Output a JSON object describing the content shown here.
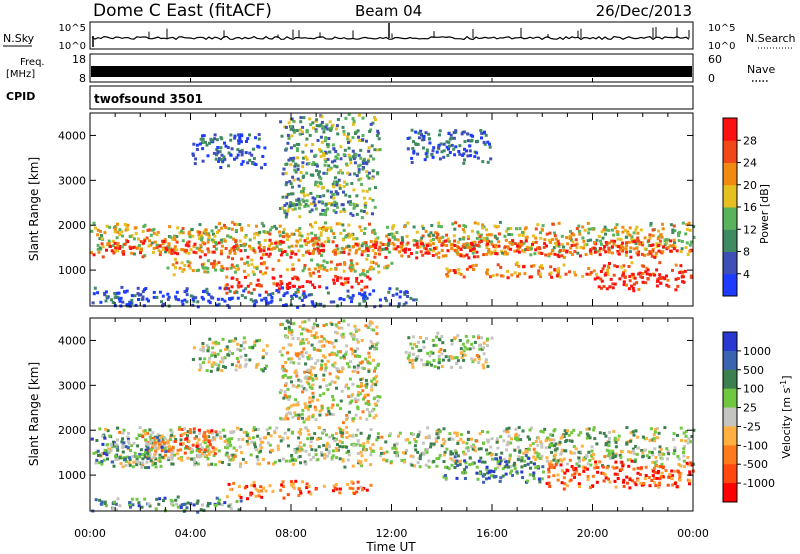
{
  "header": {
    "station": "Dome C East (fitACF)",
    "beam": "Beam 04",
    "date": "26/Dec/2013"
  },
  "nsky_panel": {
    "left_label": "N.Sky",
    "left_ticks": [
      "10^5",
      "10^0"
    ],
    "right_label": "N.Search",
    "right_ticks": [
      "10^5",
      "10^0"
    ]
  },
  "freq_panel": {
    "left_label_line1": "Freq.",
    "left_label_line2": "[MHz]",
    "left_ticks": [
      "18",
      "8"
    ],
    "right_label": "Nave",
    "right_ticks": [
      "60",
      "0"
    ]
  },
  "cpid_panel": {
    "label": "CPID",
    "program": "twofsound 3501"
  },
  "chart_data": [
    {
      "type": "heatmap",
      "title": "",
      "xlabel": "",
      "ylabel": "Slant Range [km]",
      "ylim": [
        200,
        4500
      ],
      "yticks": [
        1000,
        2000,
        3000,
        4000
      ],
      "colorbar_label": "Power [dB]",
      "colorbar_levels": [
        0,
        4,
        8,
        12,
        16,
        20,
        24,
        28,
        32
      ],
      "colorbar_ticks": [
        4,
        8,
        12,
        16,
        20,
        24,
        28
      ],
      "colorbar_colors": [
        "#1e3cff",
        "#3f4fb8",
        "#3f8a60",
        "#58b35a",
        "#e6c020",
        "#f08a10",
        "#f04818",
        "#ff1010"
      ],
      "bands": [
        {
          "x_start": 0,
          "x_end": 24,
          "y_min": 1350,
          "y_max": 2100,
          "level": 0.55
        },
        {
          "x_start": 0,
          "x_end": 24,
          "y_min": 1300,
          "y_max": 1700,
          "level": 0.85
        },
        {
          "x_start": 3,
          "x_end": 12,
          "y_min": 900,
          "y_max": 1300,
          "level": 0.6
        },
        {
          "x_start": 5.3,
          "x_end": 9.3,
          "y_min": 500,
          "y_max": 900,
          "level": 0.9
        },
        {
          "x_start": 9.5,
          "x_end": 11.2,
          "y_min": 550,
          "y_max": 900,
          "level": 0.9
        },
        {
          "x_start": 14,
          "x_end": 24,
          "y_min": 850,
          "y_max": 1200,
          "level": 0.75
        },
        {
          "x_start": 20,
          "x_end": 24,
          "y_min": 550,
          "y_max": 1000,
          "level": 0.95
        },
        {
          "x_start": 0,
          "x_end": 13,
          "y_min": 200,
          "y_max": 650,
          "level": 0.15
        },
        {
          "x_start": 4,
          "x_end": 7,
          "y_min": 3300,
          "y_max": 4100,
          "level": 0.15
        },
        {
          "x_start": 7.5,
          "x_end": 11.5,
          "y_min": 2200,
          "y_max": 4500,
          "level": 0.35
        },
        {
          "x_start": 12.5,
          "x_end": 16,
          "y_min": 3400,
          "y_max": 4200,
          "level": 0.15
        }
      ]
    },
    {
      "type": "heatmap",
      "title": "",
      "xlabel": "Time UT",
      "ylabel": "Slant Range [km]",
      "ylim": [
        200,
        4500
      ],
      "yticks": [
        1000,
        2000,
        3000,
        4000
      ],
      "xlim": [
        0,
        24
      ],
      "xticks": [
        "00:00",
        "04:00",
        "08:00",
        "12:00",
        "16:00",
        "20:00",
        "00:00"
      ],
      "colorbar_label": "Velocity [m s^-1]",
      "colorbar_ticks": [
        "1000",
        "500",
        "100",
        "25",
        "-25",
        "-100",
        "-500",
        "-1000"
      ],
      "colorbar_colors": [
        "#2838d0",
        "#3a64b0",
        "#3c8050",
        "#70c840",
        "#c4c4c0",
        "#ffb040",
        "#ff7a1c",
        "#ff4810",
        "#ff0000"
      ],
      "bands": [
        {
          "x_start": 0,
          "x_end": 24,
          "y_min": 1200,
          "y_max": 2100,
          "level": 0.45
        },
        {
          "x_start": 2,
          "x_end": 5,
          "y_min": 1400,
          "y_max": 2100,
          "level": 0.7
        },
        {
          "x_start": 0,
          "x_end": 3,
          "y_min": 1200,
          "y_max": 1900,
          "level": 0.3
        },
        {
          "x_start": 5.3,
          "x_end": 9.3,
          "y_min": 500,
          "y_max": 900,
          "level": 0.75
        },
        {
          "x_start": 9.5,
          "x_end": 11.2,
          "y_min": 550,
          "y_max": 900,
          "level": 0.75
        },
        {
          "x_start": 14,
          "x_end": 18,
          "y_min": 850,
          "y_max": 1500,
          "level": 0.25
        },
        {
          "x_start": 18,
          "x_end": 24,
          "y_min": 700,
          "y_max": 1350,
          "level": 0.8
        },
        {
          "x_start": 0,
          "x_end": 6,
          "y_min": 200,
          "y_max": 550,
          "level": 0.3
        },
        {
          "x_start": 4,
          "x_end": 7,
          "y_min": 3300,
          "y_max": 4100,
          "level": 0.45
        },
        {
          "x_start": 7.5,
          "x_end": 11.5,
          "y_min": 2200,
          "y_max": 4500,
          "level": 0.5
        },
        {
          "x_start": 12.5,
          "x_end": 16,
          "y_min": 3400,
          "y_max": 4200,
          "level": 0.45
        }
      ]
    }
  ]
}
